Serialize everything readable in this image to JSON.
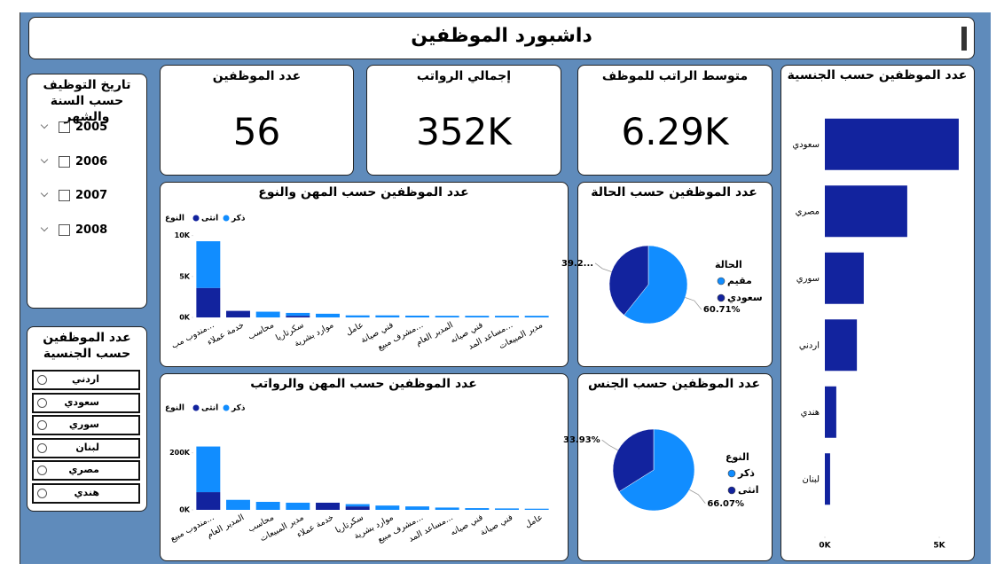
{
  "header": {
    "title": "داشبورد الموظفين"
  },
  "kpis": [
    {
      "label": "عدد الموظفين",
      "value": "56"
    },
    {
      "label": "إجمالي الرواتب",
      "value": "352K"
    },
    {
      "label": "متوسط الراتب للموظف",
      "value": "6.29K"
    }
  ],
  "slicers": [
    {
      "title": "تاريخ التوظيف حسب السنة والشهر",
      "items": [
        "2005",
        "2006",
        "2007",
        "2008"
      ]
    },
    {
      "title": "عدد الموظفين حسب الجنسية",
      "items": [
        "اردني",
        "سعودي",
        "سوري",
        "لبنان",
        "مصري",
        "هندي"
      ]
    }
  ],
  "charts": [
    {
      "type": "stacked-bar",
      "title": "عدد الموظفين حسب المهن والنوع",
      "legend_title": "النوع",
      "categories": [
        "مندوب مب...",
        "خدمة عملاء",
        "محاسب",
        "سكرتاريا",
        "موارد بشرية",
        "عامل",
        "فني صيانة",
        "مشرف مبيع...",
        "المدير العام",
        "فني صيانه",
        "مساعد المد...",
        "مدير المبيعات"
      ],
      "series": [
        {
          "name": "ذكر",
          "color": "#118dff",
          "values": [
            5700,
            null,
            700,
            350,
            450,
            250,
            250,
            220,
            200,
            200,
            200,
            200
          ]
        },
        {
          "name": "انثى",
          "color": "#12239e",
          "values": [
            3600,
            800,
            null,
            200,
            null,
            null,
            null,
            null,
            null,
            null,
            null,
            null
          ]
        }
      ],
      "ylim": [
        0,
        10500
      ],
      "yticks": [
        {
          "value": 0,
          "label": "0K"
        },
        {
          "value": 5000,
          "label": "5K"
        },
        {
          "value": 10000,
          "label": "10K"
        }
      ]
    },
    {
      "type": "stacked-bar",
      "title": "عدد الموظفين حسب المهن والرواتب",
      "legend_title": "النوع",
      "categories": [
        "مندوب مبيع...",
        "المدير العام",
        "محاسب",
        "مدير المبيعات",
        "خدمة عملاء",
        "سكرتاريا",
        "موارد بشرية",
        "مشرف مبيع...",
        "مساعد المد...",
        "فني صيانه",
        "فني صيانة",
        "عامل"
      ],
      "series": [
        {
          "name": "ذكر",
          "color": "#118dff",
          "values": [
            160000,
            35000,
            28000,
            25000,
            null,
            8000,
            15000,
            12000,
            8000,
            6000,
            5000,
            4000
          ]
        },
        {
          "name": "انثى",
          "color": "#12239e",
          "values": [
            62000,
            null,
            null,
            null,
            25000,
            12000,
            null,
            null,
            null,
            null,
            null,
            null
          ]
        }
      ],
      "ylim": [
        0,
        230000
      ],
      "yticks": [
        {
          "value": 0,
          "label": "0K"
        },
        {
          "value": 200000,
          "label": "200K"
        }
      ]
    },
    {
      "type": "pie",
      "title": "عدد الموظفين حسب الحالة",
      "legend_title": "الحالة",
      "categories": [
        "مقيم",
        "سعودي"
      ],
      "colors": [
        "#118dff",
        "#12239e"
      ],
      "values": [
        60.71,
        39.29
      ],
      "value_labels": [
        "60.71%",
        "39.2..."
      ]
    },
    {
      "type": "pie",
      "title": "عدد الموظفين حسب الجنس",
      "legend_title": "النوع",
      "categories": [
        "ذكر",
        "انثى"
      ],
      "colors": [
        "#118dff",
        "#12239e"
      ],
      "values": [
        66.07,
        33.93
      ],
      "value_labels": [
        "66.07%",
        "33.93%"
      ]
    },
    {
      "type": "hbar",
      "title": "عدد الموظفين حسب الجنسية",
      "categories": [
        "سعودي",
        "مصري",
        "سوري",
        "اردني",
        "هندي",
        "لبنان"
      ],
      "values": [
        5850,
        3600,
        1700,
        1400,
        500,
        230
      ],
      "color": "#12239e",
      "xlim": [
        0,
        6200
      ],
      "xticks": [
        {
          "value": 0,
          "label": "0K"
        },
        {
          "value": 5000,
          "label": "5K"
        }
      ]
    }
  ]
}
